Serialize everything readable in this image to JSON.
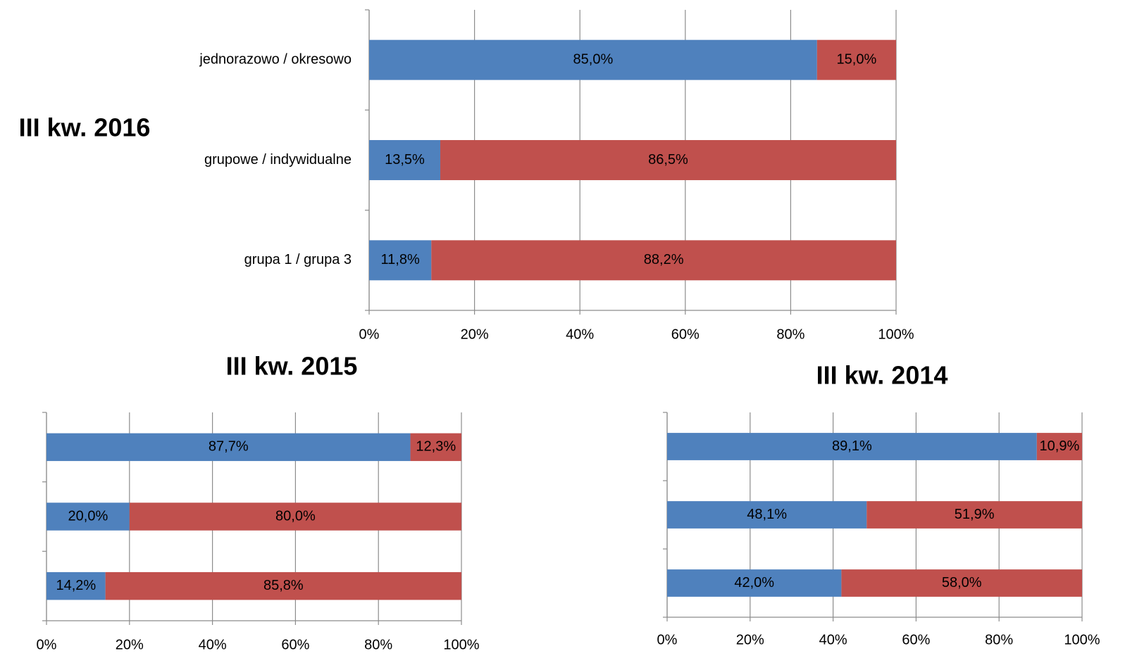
{
  "chart_data": [
    {
      "type": "bar",
      "orientation": "horizontal",
      "stacked": true,
      "title": "III kw. 2016",
      "categories": [
        "jednorazowo / okresowo",
        "grupowe / indywidualne",
        "grupa 1 / grupa 3"
      ],
      "series": [
        {
          "color": "#4f81bd",
          "values": [
            85.0,
            13.5,
            11.8
          ],
          "value_labels": [
            "85,0%",
            "13,5%",
            "11,8%"
          ]
        },
        {
          "color": "#c0504d",
          "values": [
            15.0,
            86.5,
            88.2
          ],
          "value_labels": [
            "15,0%",
            "86,5%",
            "88,2%"
          ]
        }
      ],
      "xlim": [
        0,
        100
      ],
      "xticks": [
        {
          "value": 0,
          "label": "0%"
        },
        {
          "value": 20,
          "label": "20%"
        },
        {
          "value": 40,
          "label": "40%"
        },
        {
          "value": 60,
          "label": "60%"
        },
        {
          "value": 80,
          "label": "80%"
        },
        {
          "value": 100,
          "label": "100%"
        }
      ],
      "grid": true
    },
    {
      "type": "bar",
      "orientation": "horizontal",
      "stacked": true,
      "title": "III kw. 2015",
      "categories": [
        null,
        null,
        null
      ],
      "series": [
        {
          "color": "#4f81bd",
          "values": [
            87.7,
            20.0,
            14.2
          ],
          "value_labels": [
            "87,7%",
            "20,0%",
            "14,2%"
          ]
        },
        {
          "color": "#c0504d",
          "values": [
            12.3,
            80.0,
            85.8
          ],
          "value_labels": [
            "12,3%",
            "80,0%",
            "85,8%"
          ]
        }
      ],
      "xlim": [
        0,
        100
      ],
      "xticks": [
        {
          "value": 0,
          "label": "0%"
        },
        {
          "value": 20,
          "label": "20%"
        },
        {
          "value": 40,
          "label": "40%"
        },
        {
          "value": 60,
          "label": "60%"
        },
        {
          "value": 80,
          "label": "80%"
        },
        {
          "value": 100,
          "label": "100%"
        }
      ],
      "grid": true
    },
    {
      "type": "bar",
      "orientation": "horizontal",
      "stacked": true,
      "title": "III kw. 2014",
      "categories": [
        null,
        null,
        null
      ],
      "series": [
        {
          "color": "#4f81bd",
          "values": [
            89.1,
            48.1,
            42.0
          ],
          "value_labels": [
            "89,1%",
            "48,1%",
            "42,0%"
          ]
        },
        {
          "color": "#c0504d",
          "values": [
            10.9,
            51.9,
            58.0
          ],
          "value_labels": [
            "10,9%",
            "51,9%",
            "58,0%"
          ]
        }
      ],
      "xlim": [
        0,
        100
      ],
      "xticks": [
        {
          "value": 0,
          "label": "0%"
        },
        {
          "value": 20,
          "label": "20%"
        },
        {
          "value": 40,
          "label": "40%"
        },
        {
          "value": 60,
          "label": "60%"
        },
        {
          "value": 80,
          "label": "80%"
        },
        {
          "value": 100,
          "label": "100%"
        }
      ],
      "grid": true
    }
  ]
}
